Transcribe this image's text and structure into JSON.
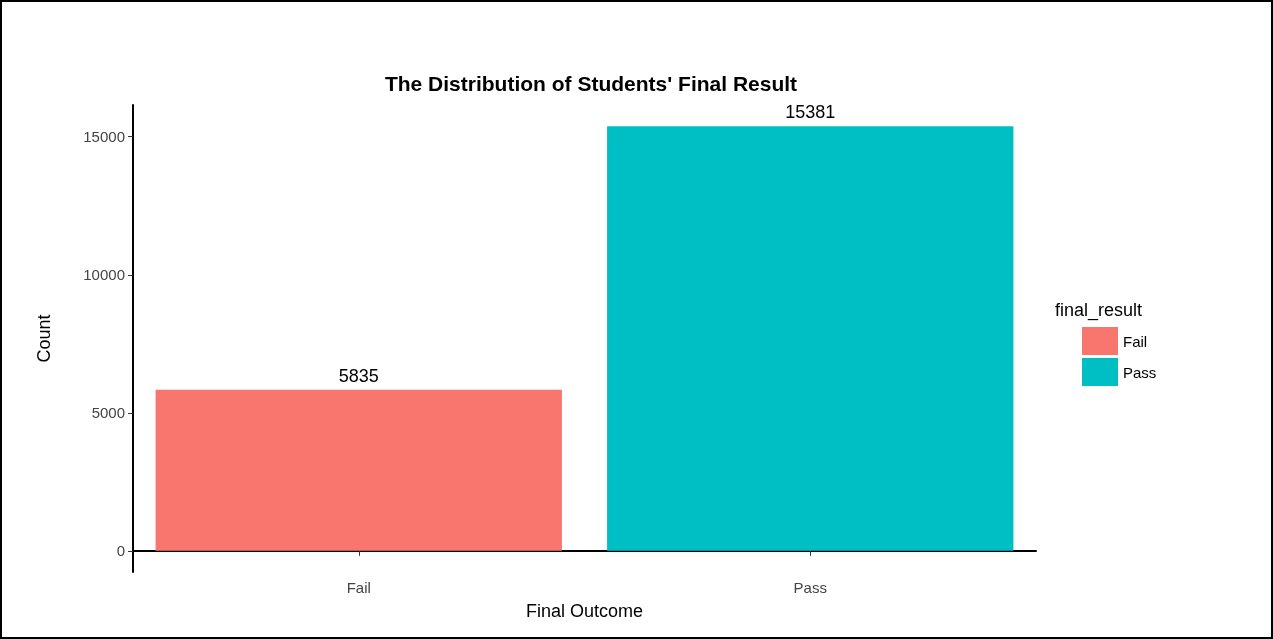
{
  "chart_data": {
    "type": "bar",
    "title": "The Distribution of Students' Final Result",
    "xlabel": "Final Outcome",
    "ylabel": "Count",
    "legend_title": "final_result",
    "legend": "right",
    "categories": [
      "Fail",
      "Pass"
    ],
    "series": [
      {
        "name": "Fail",
        "color": "#f8766d",
        "values": [
          5835,
          null
        ]
      },
      {
        "name": "Pass",
        "color": "#00bfc4",
        "values": [
          null,
          15381
        ]
      }
    ],
    "ylim": [
      -769,
      16150
    ],
    "yticks": [
      0,
      5000,
      10000,
      15000
    ],
    "grid": false,
    "data_labels": true
  }
}
